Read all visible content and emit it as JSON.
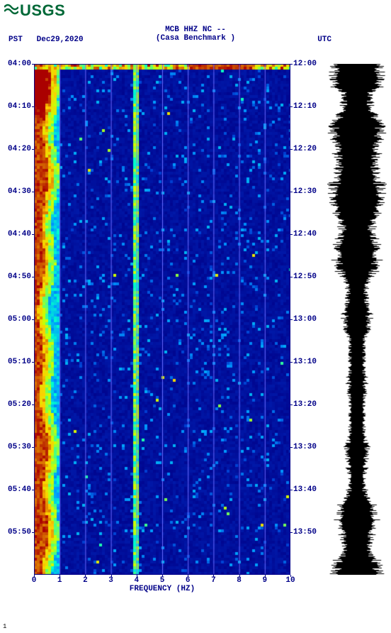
{
  "logo_text": "USGS",
  "header": {
    "line1": "MCB HHZ NC --",
    "line2": "(Casa Benchmark )"
  },
  "left_tz": "PST",
  "right_tz": "UTC",
  "date": "Dec29,2020",
  "x_label": "FREQUENCY (HZ)",
  "spectrogram": {
    "type": "spectrogram",
    "xlim": [
      0,
      10
    ],
    "x_ticks": [
      0,
      1,
      2,
      3,
      4,
      5,
      6,
      7,
      8,
      9,
      10
    ],
    "left_ticks": [
      "04:00",
      "04:10",
      "04:20",
      "04:30",
      "04:40",
      "04:50",
      "05:00",
      "05:10",
      "05:20",
      "05:30",
      "05:40",
      "05:50"
    ],
    "right_ticks": [
      "12:00",
      "12:10",
      "12:20",
      "12:30",
      "12:40",
      "12:50",
      "13:00",
      "13:10",
      "13:20",
      "13:30",
      "13:40",
      "13:50"
    ],
    "grid_color": "#6a6aff",
    "background_color": "#000088",
    "colors": {
      "low": "#000088",
      "mid1": "#0033cc",
      "mid2": "#0099ff",
      "mid3": "#00ffcc",
      "mid4": "#ccff00",
      "mid5": "#ffcc00",
      "high": "#aa0000"
    },
    "left_band_width_hz": 0.9,
    "narrow_line_hz": 3.9,
    "top_hot_band_rows": 2,
    "noise_level": 0.06
  },
  "seismogram": {
    "type": "waveform",
    "color": "#000000",
    "background": "#ffffff",
    "samples": 720,
    "amp_range": [
      0.3,
      1.0
    ]
  },
  "footer_mark": "1"
}
